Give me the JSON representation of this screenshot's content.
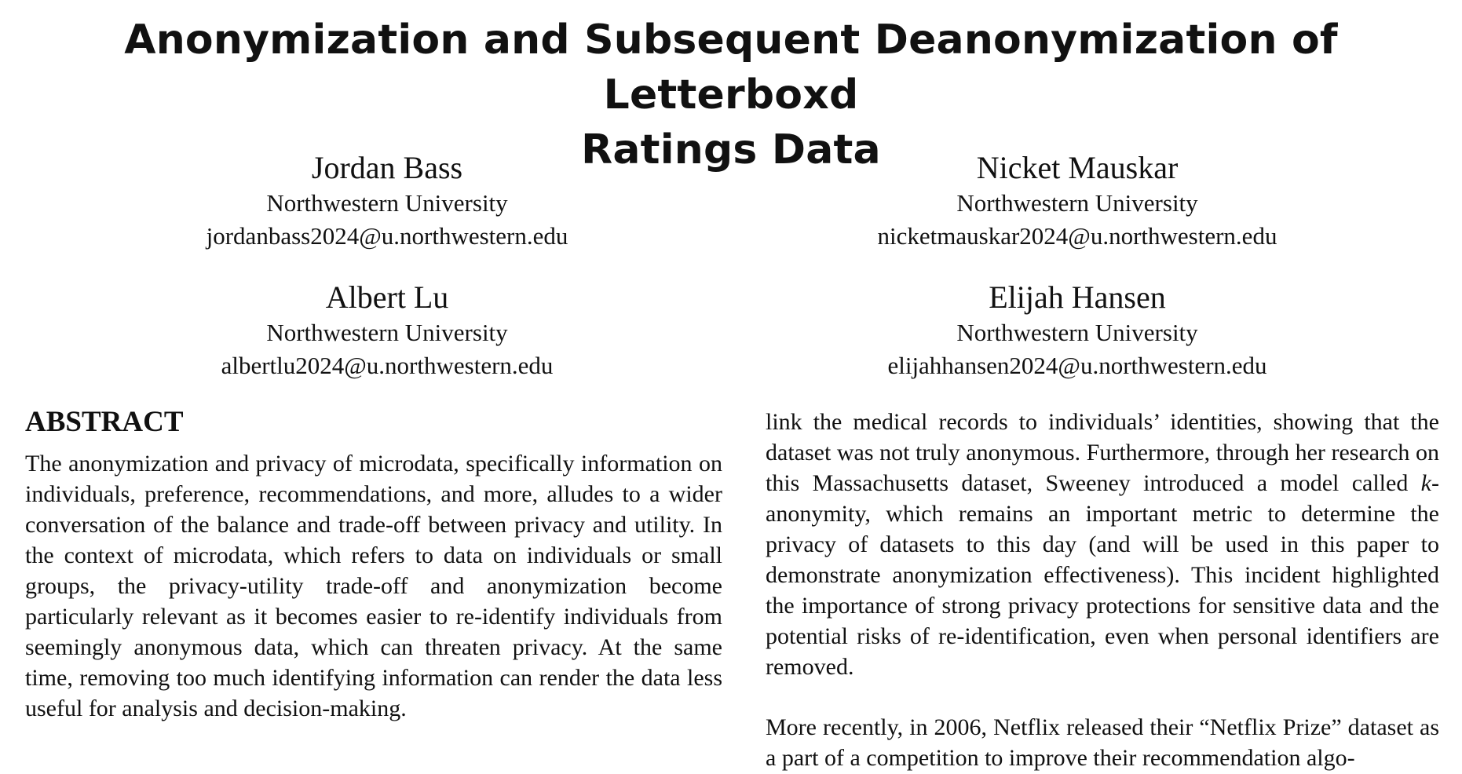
{
  "title": {
    "line1": "Anonymization and Subsequent Deanonymization of Letterboxd",
    "line2": "Ratings Data"
  },
  "authors": [
    {
      "name": "Jordan Bass",
      "affiliation": "Northwestern University",
      "email": "jordanbass2024@u.northwestern.edu"
    },
    {
      "name": "Nicket Mauskar",
      "affiliation": "Northwestern University",
      "email": "nicketmauskar2024@u.northwestern.edu"
    },
    {
      "name": "Albert Lu",
      "affiliation": "Northwestern University",
      "email": "albertlu2024@u.northwestern.edu"
    },
    {
      "name": "Elijah Hansen",
      "affiliation": "Northwestern University",
      "email": "elijahhansen2024@u.northwestern.edu"
    }
  ],
  "abstract": {
    "heading": "ABSTRACT",
    "text": "The anonymization and privacy of microdata, specifically information on individuals, preference, recommendations, and more, alludes to a wider conversation of the balance and trade-off between privacy and utility. In the context of microdata, which refers to data on individuals or small groups, the privacy-utility trade-off and anonymization become particularly relevant as it becomes easier to re-identify individuals from seemingly anonymous data, which can threaten privacy. At the same time, removing too much identifying information can render the data less useful for analysis and decision-making."
  },
  "right_column": {
    "p1_before": "link the medical records to individuals’ identities, showing that the dataset was not truly anonymous. Furthermore, through her research on this Massachusetts dataset, Sweeney introduced a model called ",
    "p1_math": "k",
    "p1_after": "-anonymity, which remains an important metric to determine the privacy of datasets to this day (and will be used in this paper to demonstrate anonymization effectiveness). This incident highlighted the importance of strong privacy protections for sensitive data and the potential risks of re-identification, even when personal identifiers are removed.",
    "p2": "More recently, in 2006, Netflix released their “Netflix Prize” dataset as a part of a competition to improve their recommendation algo-"
  }
}
